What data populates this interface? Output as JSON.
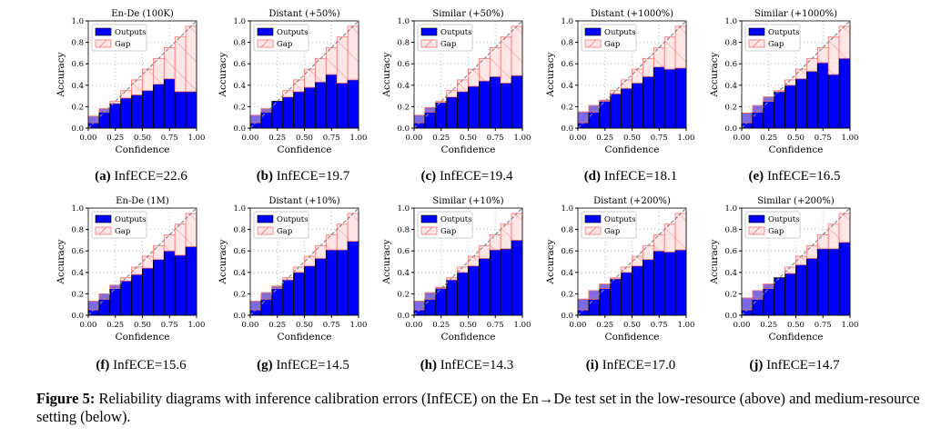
{
  "colors": {
    "outputs": "#0000ff",
    "gap_fill": "#fde6e6",
    "gap_edge": "#ff7070",
    "overlap": "#7a6ae6",
    "diagonal": "#888888"
  },
  "chart_data": [
    {
      "type": "bar",
      "label": "(a)",
      "caption": "InfECE=22.6",
      "title": "En-De (100K)",
      "xlabel": "Confidence",
      "ylabel": "Accuracy",
      "xlim": [
        0,
        1
      ],
      "ylim": [
        0,
        1
      ],
      "xticks": [
        "0.00",
        "0.25",
        "0.50",
        "0.75",
        "1.00"
      ],
      "yticks": [
        "0.0",
        "0.2",
        "0.4",
        "0.6",
        "0.8",
        "1.0"
      ],
      "legend": [
        "Outputs",
        "Gap"
      ],
      "legend_position": "top-left",
      "grid": true,
      "confidence": [
        0.05,
        0.15,
        0.25,
        0.35,
        0.45,
        0.55,
        0.65,
        0.75,
        0.85,
        0.95
      ],
      "accuracy": [
        0.11,
        0.18,
        0.23,
        0.28,
        0.31,
        0.35,
        0.41,
        0.46,
        0.34,
        0.34
      ]
    },
    {
      "type": "bar",
      "label": "(b)",
      "caption": "InfECE=19.7",
      "title": "Distant (+50%)",
      "xlabel": "Confidence",
      "ylabel": "Accuracy",
      "xlim": [
        0,
        1
      ],
      "ylim": [
        0,
        1
      ],
      "xticks": [
        "0.00",
        "0.25",
        "0.50",
        "0.75",
        "1.00"
      ],
      "yticks": [
        "0.0",
        "0.2",
        "0.4",
        "0.6",
        "0.8",
        "1.0"
      ],
      "legend": [
        "Outputs",
        "Gap"
      ],
      "legend_position": "top-left",
      "grid": true,
      "confidence": [
        0.05,
        0.15,
        0.25,
        0.35,
        0.45,
        0.55,
        0.65,
        0.75,
        0.85,
        0.95
      ],
      "accuracy": [
        0.12,
        0.18,
        0.25,
        0.29,
        0.34,
        0.38,
        0.43,
        0.5,
        0.42,
        0.45
      ]
    },
    {
      "type": "bar",
      "label": "(c)",
      "caption": "InfECE=19.4",
      "title": "Similar (+50%)",
      "xlabel": "Confidence",
      "ylabel": "Accuracy",
      "xlim": [
        0,
        1
      ],
      "ylim": [
        0,
        1
      ],
      "xticks": [
        "0.00",
        "0.25",
        "0.50",
        "0.75",
        "1.00"
      ],
      "yticks": [
        "0.0",
        "0.2",
        "0.4",
        "0.6",
        "0.8",
        "1.0"
      ],
      "legend": [
        "Outputs",
        "Gap"
      ],
      "legend_position": "top-left",
      "grid": true,
      "confidence": [
        0.05,
        0.15,
        0.25,
        0.35,
        0.45,
        0.55,
        0.65,
        0.75,
        0.85,
        0.95
      ],
      "accuracy": [
        0.12,
        0.19,
        0.24,
        0.29,
        0.34,
        0.39,
        0.44,
        0.48,
        0.42,
        0.49
      ]
    },
    {
      "type": "bar",
      "label": "(d)",
      "caption": "InfECE=18.1",
      "title": "Distant (+1000%)",
      "xlabel": "Confidence",
      "ylabel": "Accuracy",
      "xlim": [
        0,
        1
      ],
      "ylim": [
        0,
        1
      ],
      "xticks": [
        "0.00",
        "0.25",
        "0.50",
        "0.75",
        "1.00"
      ],
      "yticks": [
        "0.0",
        "0.2",
        "0.4",
        "0.6",
        "0.8",
        "1.0"
      ],
      "legend": [
        "Outputs",
        "Gap"
      ],
      "legend_position": "top-left",
      "grid": true,
      "confidence": [
        0.05,
        0.15,
        0.25,
        0.35,
        0.45,
        0.55,
        0.65,
        0.75,
        0.85,
        0.95
      ],
      "accuracy": [
        0.15,
        0.21,
        0.26,
        0.32,
        0.37,
        0.42,
        0.48,
        0.57,
        0.55,
        0.56
      ]
    },
    {
      "type": "bar",
      "label": "(e)",
      "caption": "InfECE=16.5",
      "title": "Similar (+1000%)",
      "xlabel": "Confidence",
      "ylabel": "Accuracy",
      "xlim": [
        0,
        1
      ],
      "ylim": [
        0,
        1
      ],
      "xticks": [
        "0.00",
        "0.25",
        "0.50",
        "0.75",
        "1.00"
      ],
      "yticks": [
        "0.0",
        "0.2",
        "0.4",
        "0.6",
        "0.8",
        "1.0"
      ],
      "legend": [
        "Outputs",
        "Gap"
      ],
      "legend_position": "top-left",
      "grid": true,
      "confidence": [
        0.05,
        0.15,
        0.25,
        0.35,
        0.45,
        0.55,
        0.65,
        0.75,
        0.85,
        0.95
      ],
      "accuracy": [
        0.14,
        0.21,
        0.29,
        0.34,
        0.4,
        0.46,
        0.53,
        0.61,
        0.5,
        0.65
      ]
    },
    {
      "type": "bar",
      "label": "(f)",
      "caption": "InfECE=15.6",
      "title": "En-De (1M)",
      "xlabel": "Confidence",
      "ylabel": "Accuracy",
      "xlim": [
        0,
        1
      ],
      "ylim": [
        0,
        1
      ],
      "xticks": [
        "0.00",
        "0.25",
        "0.50",
        "0.75",
        "1.00"
      ],
      "yticks": [
        "0.0",
        "0.2",
        "0.4",
        "0.6",
        "0.8",
        "1.0"
      ],
      "legend": [
        "Outputs",
        "Gap"
      ],
      "legend_position": "top-left",
      "grid": true,
      "confidence": [
        0.05,
        0.15,
        0.25,
        0.35,
        0.45,
        0.55,
        0.65,
        0.75,
        0.85,
        0.95
      ],
      "accuracy": [
        0.13,
        0.2,
        0.28,
        0.32,
        0.38,
        0.44,
        0.52,
        0.6,
        0.56,
        0.64
      ]
    },
    {
      "type": "bar",
      "label": "(g)",
      "caption": "InfECE=14.5",
      "title": "Distant (+10%)",
      "xlabel": "Confidence",
      "ylabel": "Accuracy",
      "xlim": [
        0,
        1
      ],
      "ylim": [
        0,
        1
      ],
      "xticks": [
        "0.00",
        "0.25",
        "0.50",
        "0.75",
        "1.00"
      ],
      "yticks": [
        "0.0",
        "0.2",
        "0.4",
        "0.6",
        "0.8",
        "1.0"
      ],
      "legend": [
        "Outputs",
        "Gap"
      ],
      "legend_position": "top-left",
      "grid": true,
      "confidence": [
        0.05,
        0.15,
        0.25,
        0.35,
        0.45,
        0.55,
        0.65,
        0.75,
        0.85,
        0.95
      ],
      "accuracy": [
        0.13,
        0.21,
        0.27,
        0.33,
        0.4,
        0.46,
        0.53,
        0.61,
        0.61,
        0.69
      ]
    },
    {
      "type": "bar",
      "label": "(h)",
      "caption": "InfECE=14.3",
      "title": "Similar (+10%)",
      "xlabel": "Confidence",
      "ylabel": "Accuracy",
      "xlim": [
        0,
        1
      ],
      "ylim": [
        0,
        1
      ],
      "xticks": [
        "0.00",
        "0.25",
        "0.50",
        "0.75",
        "1.00"
      ],
      "yticks": [
        "0.0",
        "0.2",
        "0.4",
        "0.6",
        "0.8",
        "1.0"
      ],
      "legend": [
        "Outputs",
        "Gap"
      ],
      "legend_position": "top-left",
      "grid": true,
      "confidence": [
        0.05,
        0.15,
        0.25,
        0.35,
        0.45,
        0.55,
        0.65,
        0.75,
        0.85,
        0.95
      ],
      "accuracy": [
        0.13,
        0.21,
        0.26,
        0.33,
        0.4,
        0.46,
        0.53,
        0.61,
        0.62,
        0.7
      ]
    },
    {
      "type": "bar",
      "label": "(i)",
      "caption": "InfECE=17.0",
      "title": "Distant (+200%)",
      "xlabel": "Confidence",
      "ylabel": "Accuracy",
      "xlim": [
        0,
        1
      ],
      "ylim": [
        0,
        1
      ],
      "xticks": [
        "0.00",
        "0.25",
        "0.50",
        "0.75",
        "1.00"
      ],
      "yticks": [
        "0.0",
        "0.2",
        "0.4",
        "0.6",
        "0.8",
        "1.0"
      ],
      "legend": [
        "Outputs",
        "Gap"
      ],
      "legend_position": "top-left",
      "grid": true,
      "confidence": [
        0.05,
        0.15,
        0.25,
        0.35,
        0.45,
        0.55,
        0.65,
        0.75,
        0.85,
        0.95
      ],
      "accuracy": [
        0.15,
        0.23,
        0.29,
        0.34,
        0.4,
        0.46,
        0.52,
        0.6,
        0.59,
        0.61
      ]
    },
    {
      "type": "bar",
      "label": "(j)",
      "caption": "InfECE=14.7",
      "title": "Similar (+200%)",
      "xlabel": "Confidence",
      "ylabel": "Accuracy",
      "xlim": [
        0,
        1
      ],
      "ylim": [
        0,
        1
      ],
      "xticks": [
        "0.00",
        "0.25",
        "0.50",
        "0.75",
        "1.00"
      ],
      "yticks": [
        "0.0",
        "0.2",
        "0.4",
        "0.6",
        "0.8",
        "1.0"
      ],
      "legend": [
        "Outputs",
        "Gap"
      ],
      "legend_position": "top-left",
      "grid": true,
      "confidence": [
        0.05,
        0.15,
        0.25,
        0.35,
        0.45,
        0.55,
        0.65,
        0.75,
        0.85,
        0.95
      ],
      "accuracy": [
        0.16,
        0.23,
        0.29,
        0.35,
        0.39,
        0.47,
        0.53,
        0.62,
        0.62,
        0.68
      ]
    }
  ],
  "figure_caption": {
    "label": "Figure 5:",
    "text": " Reliability diagrams with inference calibration errors (InfECE) on the En→De test set in the low-resource (above) and medium-resource setting (below)."
  }
}
